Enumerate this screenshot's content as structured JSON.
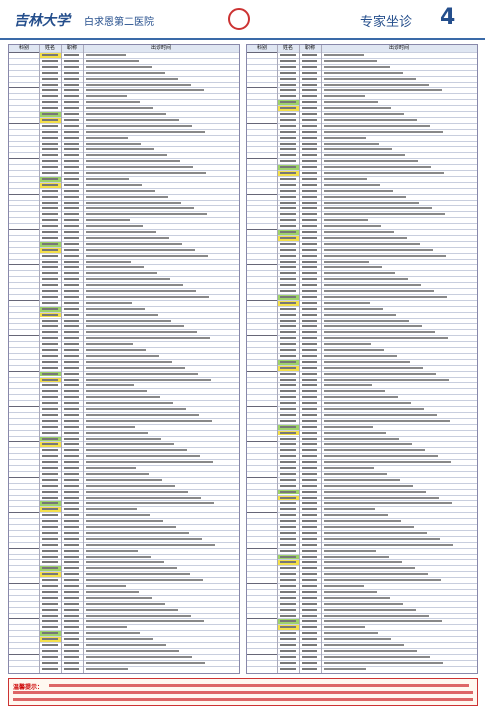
{
  "header": {
    "brand": "吉林大学",
    "hospital": "白求恩第二医院",
    "section": "专家坐诊",
    "page": "4"
  },
  "tables": {
    "left": {
      "columns": [
        "科别",
        "姓名",
        "职称",
        "出诊时间"
      ]
    },
    "right": {
      "columns": [
        "科别",
        "姓名",
        "职称",
        "出诊时间"
      ]
    }
  },
  "notice": {
    "label": "温馨提示："
  }
}
